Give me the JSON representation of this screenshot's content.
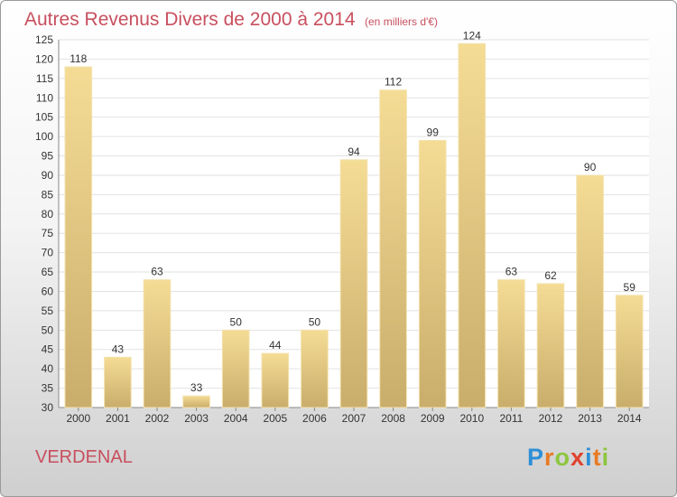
{
  "chart_data": {
    "type": "bar",
    "title": "Autres Revenus Divers de 2000 à 2014",
    "subtitle": "(en milliers d'€)",
    "categories": [
      "2000",
      "2001",
      "2002",
      "2003",
      "2004",
      "2005",
      "2006",
      "2007",
      "2008",
      "2009",
      "2010",
      "2011",
      "2012",
      "2013",
      "2014"
    ],
    "values": [
      118,
      43,
      63,
      33,
      50,
      44,
      50,
      94,
      112,
      99,
      124,
      63,
      62,
      90,
      59
    ],
    "xlabel": "",
    "ylabel": "",
    "ylim": [
      30,
      125
    ],
    "yticks": [
      30,
      35,
      40,
      45,
      50,
      55,
      60,
      65,
      70,
      75,
      80,
      85,
      90,
      95,
      100,
      105,
      110,
      115,
      120,
      125
    ],
    "grid": true,
    "bar_color": "#e8cc85",
    "title_color": "#c84f5e"
  },
  "footer": {
    "commune": "VERDENAL",
    "logo_letters": [
      "P",
      "r",
      "o",
      "x",
      "i",
      "t",
      "i"
    ],
    "logo_colors": [
      "#2e8fd6",
      "#e87b24",
      "#8cc63e",
      "#e0412f",
      "#2e8fd6",
      "#e87b24",
      "#8cc63e"
    ]
  }
}
